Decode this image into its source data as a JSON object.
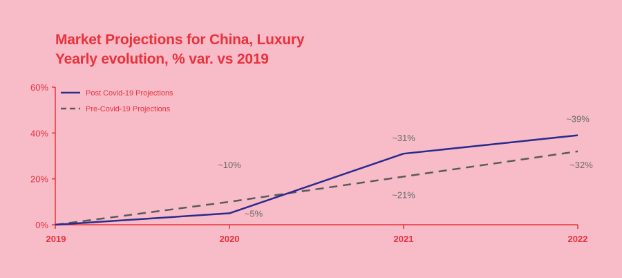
{
  "chart_data": {
    "type": "line",
    "title": "Market Projections for China, Luxury",
    "subtitle": "Yearly evolution, % var. vs 2019",
    "x": [
      "2019",
      "2020",
      "2021",
      "2022"
    ],
    "ylim": [
      0,
      60
    ],
    "yticks": [
      "0%",
      "20%",
      "40%",
      "60%"
    ],
    "grid": false,
    "legend": "top-left",
    "colors": {
      "axis": "#e8323c",
      "post": "#2a2a8c",
      "pre": "#5a5a5a",
      "labels": "#6a6a6a",
      "background": "#f7bcc8"
    },
    "series": [
      {
        "name": "Post Covid-19 Projections",
        "values": [
          0,
          5,
          31,
          39
        ],
        "labels": [
          "",
          "~5%",
          "~31%",
          "~39%"
        ],
        "style": "solid"
      },
      {
        "name": "Pre-Covid-19 Projections",
        "values": [
          0,
          10,
          21,
          32
        ],
        "labels": [
          "",
          "~10%",
          "~21%",
          "~32%"
        ],
        "style": "dashed"
      }
    ]
  }
}
